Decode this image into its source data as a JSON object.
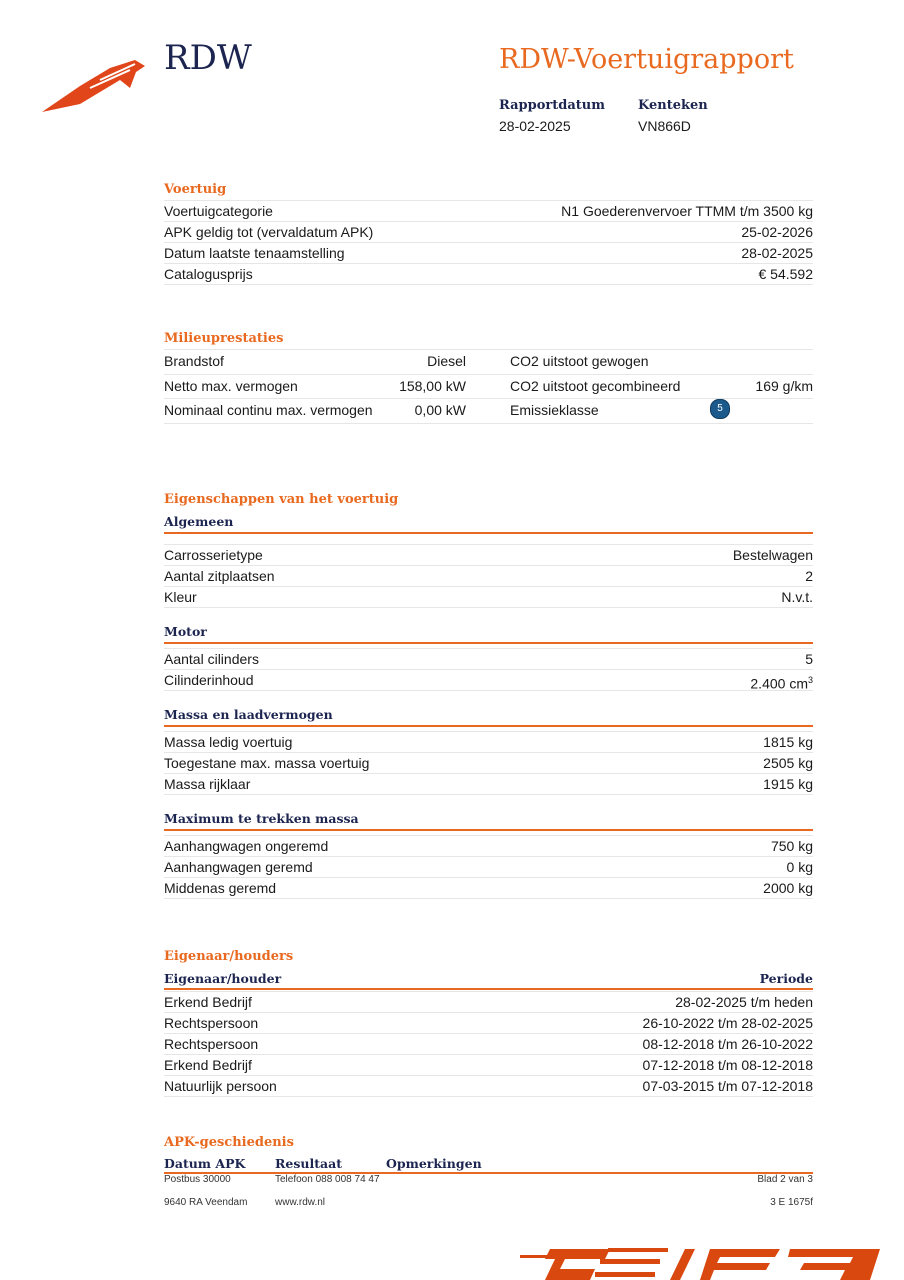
{
  "header": {
    "logo_text": "RDW",
    "title": "RDW-Voertuigrapport",
    "report_date_label": "Rapportdatum",
    "report_date": "28-02-2025",
    "plate_label": "Kenteken",
    "plate": "VN866D"
  },
  "voertuig": {
    "title": "Voertuig",
    "rows": [
      {
        "label": "Voertuigcategorie",
        "value": "N1 Goederenvervoer TTMM t/m 3500 kg"
      },
      {
        "label": "APK geldig tot (vervaldatum APK)",
        "value": "25-02-2026"
      },
      {
        "label": "Datum laatste tenaamstelling",
        "value": "28-02-2025"
      },
      {
        "label": "Catalogusprijs",
        "value": "€ 54.592"
      }
    ]
  },
  "milieu": {
    "title": "Milieuprestaties",
    "rows": [
      {
        "l1": "Brandstof",
        "v1": "Diesel",
        "l2": "CO2 uitstoot gewogen",
        "v2": ""
      },
      {
        "l1": "Netto max. vermogen",
        "v1": "158,00 kW",
        "l2": "CO2 uitstoot gecombineerd",
        "v2": "169 g/km"
      },
      {
        "l1": "Nominaal continu max. vermogen",
        "v1": "0,00 kW",
        "l2": "Emissieklasse",
        "v2": "5"
      }
    ]
  },
  "eigenschappen": {
    "title": "Eigenschappen van het voertuig",
    "algemeen": {
      "title": "Algemeen",
      "rows": [
        {
          "label": "Carrosserietype",
          "value": "Bestelwagen"
        },
        {
          "label": "Aantal zitplaatsen",
          "value": "2"
        },
        {
          "label": "Kleur",
          "value": "N.v.t."
        }
      ]
    },
    "motor": {
      "title": "Motor",
      "rows": [
        {
          "label": "Aantal cilinders",
          "value": "5"
        },
        {
          "label": "Cilinderinhoud",
          "value": "2.400 cm",
          "unit_sup": "3"
        }
      ]
    },
    "massa": {
      "title": "Massa en laadvermogen",
      "rows": [
        {
          "label": "Massa ledig voertuig",
          "value": "1815 kg"
        },
        {
          "label": "Toegestane max. massa voertuig",
          "value": "2505 kg"
        },
        {
          "label": "Massa rijklaar",
          "value": "1915 kg"
        }
      ]
    },
    "trek": {
      "title": "Maximum te trekken massa",
      "rows": [
        {
          "label": "Aanhangwagen ongeremd",
          "value": "750 kg"
        },
        {
          "label": "Aanhangwagen geremd",
          "value": "0 kg"
        },
        {
          "label": "Middenas geremd",
          "value": "2000 kg"
        }
      ]
    }
  },
  "eigenaar": {
    "title": "Eigenaar/houders",
    "col1": "Eigenaar/houder",
    "col2": "Periode",
    "rows": [
      {
        "label": "Erkend Bedrijf",
        "value": "28-02-2025 t/m heden"
      },
      {
        "label": "Rechtspersoon",
        "value": "26-10-2022 t/m 28-02-2025"
      },
      {
        "label": "Rechtspersoon",
        "value": "08-12-2018 t/m 26-10-2022"
      },
      {
        "label": "Erkend Bedrijf",
        "value": "07-12-2018 t/m 08-12-2018"
      },
      {
        "label": "Natuurlijk persoon",
        "value": "07-03-2015 t/m 07-12-2018"
      }
    ]
  },
  "apk": {
    "title": "APK-geschiedenis",
    "col1": "Datum APK",
    "col2": "Resultaat",
    "col3": "Opmerkingen"
  },
  "footer": {
    "postbus": "Postbus 30000",
    "telefoon": "Telefoon 088 008 74 47",
    "blad": "Blad 2 van 3",
    "adres": "9640 RA Veendam",
    "web": "www.rdw.nl",
    "code": "3 E 1675f"
  },
  "colors": {
    "accent": "#e8691f",
    "navy": "#1c2450",
    "badge": "#1d5a8c"
  }
}
